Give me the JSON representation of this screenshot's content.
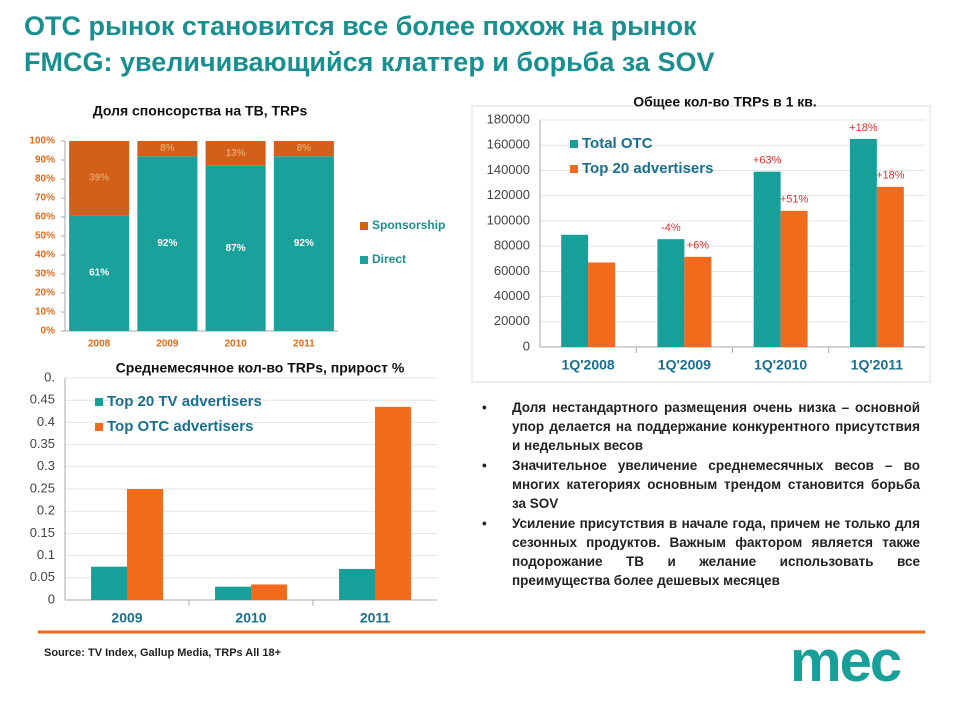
{
  "title": [
    "ОТС рынок становится все более похож на рынок",
    "FMCG: увеличивающийся клаттер и борьба за SOV"
  ],
  "bullets": [
    "Доля нестандартного размещения очень низка – основной упор делается на поддержание конкурентного присутствия и недельных весов",
    "Значительное увеличение среднемесячных весов – во многих категориях основным трендом становится борьба за SOV",
    "Усиление присутствия в начале года, причем не только для сезонных продуктов. Важным фактором является также подорожание ТВ и желание использовать все преимущества более дешевых месяцев"
  ],
  "source": "Source: TV Index, Gallup Media, TRPs All 18+",
  "logo": "mec",
  "chart_data": [
    {
      "type": "stacked_bar",
      "title": "Доля спонсорства на ТВ, TRPs",
      "categories": [
        "2008",
        "2009",
        "2010",
        "2011"
      ],
      "series": [
        {
          "name": "Direct",
          "color": "#1aa19b",
          "values": [
            61,
            92,
            87,
            92
          ],
          "value_labels": [
            "61%",
            "92%",
            "87%",
            "92%"
          ]
        },
        {
          "name": "Sponsorship",
          "color": "#d2601a",
          "values": [
            39,
            8,
            13,
            8
          ],
          "value_labels": [
            "39%",
            "8%",
            "13%",
            "8%"
          ]
        }
      ],
      "ylim": [
        0,
        100
      ],
      "yticks": [
        {
          "value": 0,
          "label": "0%"
        },
        {
          "value": 10,
          "label": "10%"
        },
        {
          "value": 20,
          "label": "20%"
        },
        {
          "value": 30,
          "label": "30%"
        },
        {
          "value": 40,
          "label": "40%"
        },
        {
          "value": 50,
          "label": "50%"
        },
        {
          "value": 60,
          "label": "60%"
        },
        {
          "value": 70,
          "label": "70%"
        },
        {
          "value": 80,
          "label": "80%"
        },
        {
          "value": 90,
          "label": "90%"
        },
        {
          "value": 100,
          "label": "100%"
        }
      ],
      "grid": false,
      "legend": "right"
    },
    {
      "type": "bar",
      "title": "Общее кол-во TRPs в 1 кв.",
      "categories": [
        "1Q'2008",
        "1Q'2009",
        "1Q'2010",
        "1Q'2011"
      ],
      "series": [
        {
          "name": "Total OTC",
          "color": "#17a09a",
          "values": [
            89000,
            85500,
            139000,
            165000
          ],
          "growth": [
            null,
            "-4%",
            "+63%",
            "+18%"
          ]
        },
        {
          "name": "Top 20 advertisers",
          "color": "#f26b1d",
          "values": [
            67000,
            71500,
            108000,
            127000
          ],
          "growth": [
            null,
            "+6%",
            "+51%",
            "+18%"
          ]
        }
      ],
      "ylim": [
        0,
        180000
      ],
      "yticks": [
        0,
        20000,
        40000,
        60000,
        80000,
        100000,
        120000,
        140000,
        160000,
        180000
      ],
      "grid": true,
      "legend": "upper left"
    },
    {
      "type": "bar",
      "title": "Среднемесячное кол-во TRPs, прирост %",
      "categories": [
        "2009",
        "2010",
        "2011"
      ],
      "series": [
        {
          "name": "Top 20 TV advertisers",
          "color": "#17a09a",
          "values": [
            0.075,
            0.03,
            0.07
          ]
        },
        {
          "name": "Top OTC advertisers",
          "color": "#f26b1d",
          "values": [
            0.25,
            0.035,
            0.435
          ]
        }
      ],
      "ylim": [
        0,
        0.5
      ],
      "yticks": [
        0,
        0.05,
        0.1,
        0.15,
        0.2,
        0.25,
        0.3,
        0.35,
        0.4,
        0.45,
        {
          "value": 0.5,
          "label": "0."
        }
      ],
      "grid": true,
      "legend": "upper left"
    }
  ]
}
